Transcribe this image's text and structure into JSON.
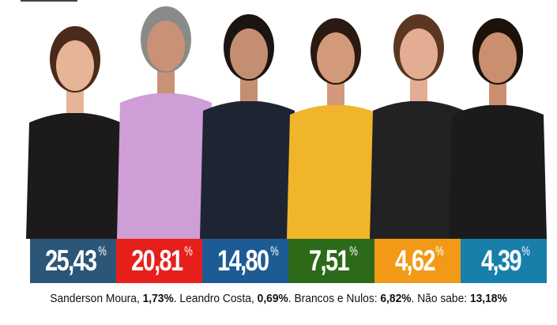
{
  "results": [
    {
      "value": "25,43",
      "unit": "%",
      "color": "#2c5677"
    },
    {
      "value": "20,81",
      "unit": "%",
      "color": "#e61f1b"
    },
    {
      "value": "14,80",
      "unit": "%",
      "color": "#1d5b95"
    },
    {
      "value": "7,51",
      "unit": "%",
      "color": "#2c6a19"
    },
    {
      "value": "4,62",
      "unit": "%",
      "color": "#f29a17"
    },
    {
      "value": "4,39",
      "unit": "%",
      "color": "#187fab"
    }
  ],
  "footnote": {
    "items": [
      {
        "label": "Sanderson Moura, ",
        "value": "1,73%",
        "sep": ". "
      },
      {
        "label": "Leandro Costa, ",
        "value": "0,69%",
        "sep": ". "
      },
      {
        "label": "Brancos e Nulos: ",
        "value": "6,82%",
        "sep": ". "
      },
      {
        "label": "Não sabe: ",
        "value": "13,18%",
        "sep": ""
      }
    ]
  },
  "photos": [
    {
      "shirt": "#1c1a1a",
      "skin": "#e6b597",
      "hair": "#4a2a1a"
    },
    {
      "shirt": "#cf9ed6",
      "skin": "#c99176",
      "hair": "#8a8a88"
    },
    {
      "shirt": "#1f2433",
      "skin": "#c48f70",
      "hair": "#1a1512"
    },
    {
      "shirt": "#f0b52a",
      "skin": "#d29a7a",
      "hair": "#2a1a12"
    },
    {
      "shirt": "#222222",
      "skin": "#e2ad93",
      "hair": "#5b3722"
    },
    {
      "shirt": "#1b1b1d",
      "skin": "#c98f6f",
      "hair": "#1b120c"
    }
  ]
}
